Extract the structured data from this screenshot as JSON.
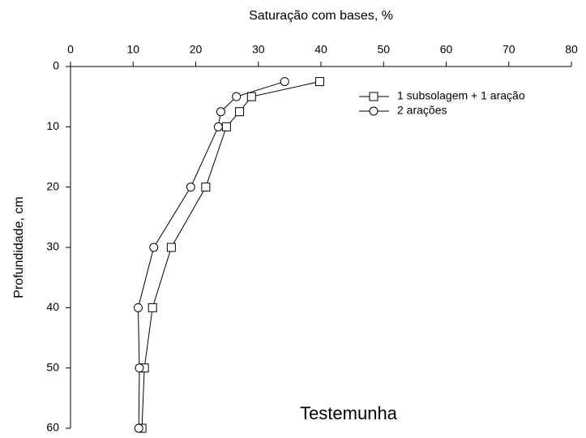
{
  "chart_data": {
    "type": "line",
    "xlabel": "Saturação com bases, %",
    "ylabel": "Profundidade, cm",
    "annotation": "Testemunha",
    "depths": [
      2.5,
      5,
      7.5,
      10,
      20,
      30,
      40,
      50,
      60
    ],
    "series": [
      {
        "name": "1 subsolagem + 1 aração",
        "marker": "square",
        "color": "#000000",
        "values": [
          39.8,
          28.9,
          27,
          24.9,
          21.6,
          16.1,
          13.1,
          11.8,
          11.4
        ]
      },
      {
        "name": "2 arações",
        "marker": "circle",
        "color": "#000000",
        "values": [
          34.2,
          26.5,
          24,
          23.6,
          19.2,
          13.3,
          10.8,
          11,
          10.9
        ]
      }
    ],
    "xlim": [
      0,
      80
    ],
    "xticks": [
      0,
      10,
      20,
      30,
      40,
      50,
      60,
      70,
      80
    ],
    "ylim": [
      0,
      60
    ],
    "yticks": [
      0,
      10,
      20,
      30,
      40,
      50,
      60
    ],
    "y_inverted": true,
    "x_axis_top": true,
    "grid": false,
    "legend": "upper right"
  }
}
